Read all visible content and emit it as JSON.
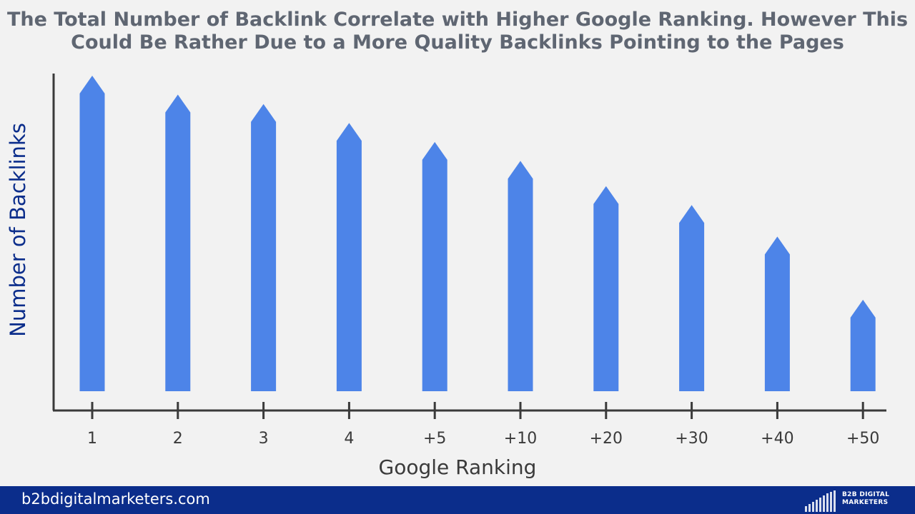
{
  "title_line1": "The Total Number of Backlink Correlate with Higher Google Ranking. However This",
  "title_line2": "Could Be Rather Due to a More Quality Backlinks Pointing to the Pages",
  "colors": {
    "bar": "#4d84e8",
    "axis": "#3a3a3a",
    "ylabel": "#0b2d8b",
    "title": "#5f6672",
    "footer": "#0b2d8b"
  },
  "chart_data": {
    "type": "bar",
    "categories": [
      "1",
      "2",
      "3",
      "4",
      "+5",
      "+10",
      "+20",
      "+30",
      "+40",
      "+50"
    ],
    "values": [
      100,
      94,
      91,
      85,
      79,
      73,
      65,
      59,
      49,
      29
    ],
    "xlabel": "Google Ranking",
    "ylabel": "Number of Backlinks",
    "ylim": [
      0,
      100
    ],
    "grid": false,
    "y_ticks_shown": false
  },
  "footer": {
    "site": "b2bdigitalmarketers.com",
    "logo_line1": "B2B DIGITAL",
    "logo_line2": "MARKETERS"
  }
}
